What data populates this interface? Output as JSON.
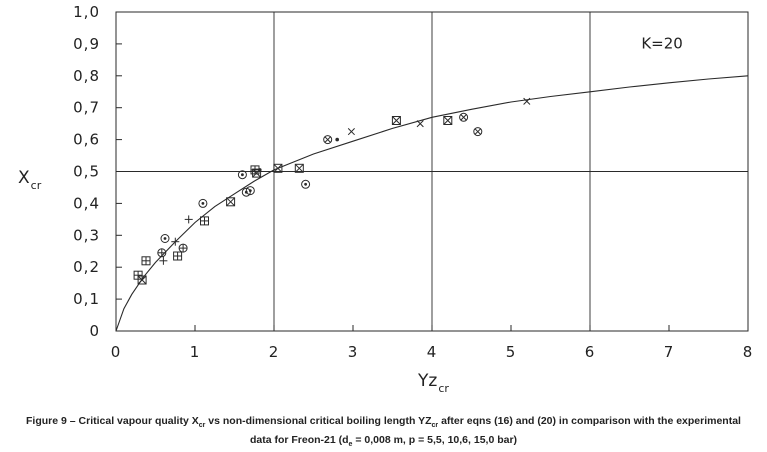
{
  "chart_data": {
    "type": "scatter",
    "title": "",
    "xlabel": {
      "main": "Yz",
      "sub": "cr"
    },
    "ylabel": {
      "main": "X",
      "sub": "cr"
    },
    "xlim": [
      0,
      8
    ],
    "ylim": [
      0,
      1.0
    ],
    "x_ticks": [
      "0",
      "1",
      "2",
      "3",
      "4",
      "5",
      "6",
      "7",
      "8"
    ],
    "y_ticks": [
      "0",
      "0,1",
      "0,2",
      "0,3",
      "0,4",
      "0,5",
      "0,6",
      "0,7",
      "0,8",
      "0,9",
      "1,0"
    ],
    "grid": {
      "x_lines": [
        2,
        4,
        6
      ],
      "y_lines": [
        0.5
      ]
    },
    "curve": {
      "label": "K=20",
      "x": [
        0,
        0.1,
        0.2,
        0.35,
        0.5,
        0.75,
        1.0,
        1.25,
        1.5,
        1.75,
        2.0,
        2.5,
        3.0,
        3.5,
        4.0,
        4.5,
        5.0,
        5.5,
        6.0,
        6.5,
        7.0,
        7.5,
        8.0
      ],
      "y": [
        0.0,
        0.07,
        0.115,
        0.17,
        0.215,
        0.28,
        0.34,
        0.39,
        0.43,
        0.47,
        0.505,
        0.555,
        0.595,
        0.635,
        0.67,
        0.695,
        0.718,
        0.735,
        0.75,
        0.765,
        0.778,
        0.79,
        0.8
      ]
    },
    "series": [
      {
        "marker": "boxed-plus",
        "x": [
          0.28,
          0.38,
          0.78,
          1.12,
          1.76
        ],
        "y": [
          0.175,
          0.22,
          0.235,
          0.345,
          0.505
        ]
      },
      {
        "marker": "boxed-x",
        "x": [
          0.33,
          1.45,
          1.78,
          2.05,
          2.32,
          3.55,
          4.2
        ],
        "y": [
          0.16,
          0.405,
          0.495,
          0.51,
          0.51,
          0.66,
          0.66
        ]
      },
      {
        "marker": "plus",
        "x": [
          0.6,
          0.75,
          0.92
        ],
        "y": [
          0.22,
          0.28,
          0.35
        ]
      },
      {
        "marker": "circle-plus",
        "x": [
          0.58,
          0.85
        ],
        "y": [
          0.245,
          0.26
        ]
      },
      {
        "marker": "circle-dot",
        "x": [
          0.62,
          1.1,
          1.6,
          1.65,
          1.7,
          2.4
        ],
        "y": [
          0.29,
          0.4,
          0.49,
          0.435,
          0.44,
          0.46
        ]
      },
      {
        "marker": "circle-x",
        "x": [
          2.68,
          4.4,
          4.58
        ],
        "y": [
          0.6,
          0.67,
          0.625
        ]
      },
      {
        "marker": "x",
        "x": [
          2.98,
          3.85,
          5.2
        ],
        "y": [
          0.625,
          0.65,
          0.72
        ]
      },
      {
        "marker": "dot",
        "x": [
          1.82,
          2.8
        ],
        "y": [
          0.505,
          0.6
        ]
      }
    ]
  },
  "caption": {
    "line1_pre": "Figure 9 – Critical vapour quality X",
    "line1_sub1": "cr",
    "line1_mid": " vs non-dimensional critical boiling length YZ",
    "line1_sub2": "cr",
    "line1_post": " after eqns (16) and (20) in comparison with the experimental",
    "line2_pre": "data for Freon-21 (d",
    "line2_sub": "e",
    "line2_post": " = 0,008 m, p = 5,5, 10,6, 15,0 bar)"
  }
}
